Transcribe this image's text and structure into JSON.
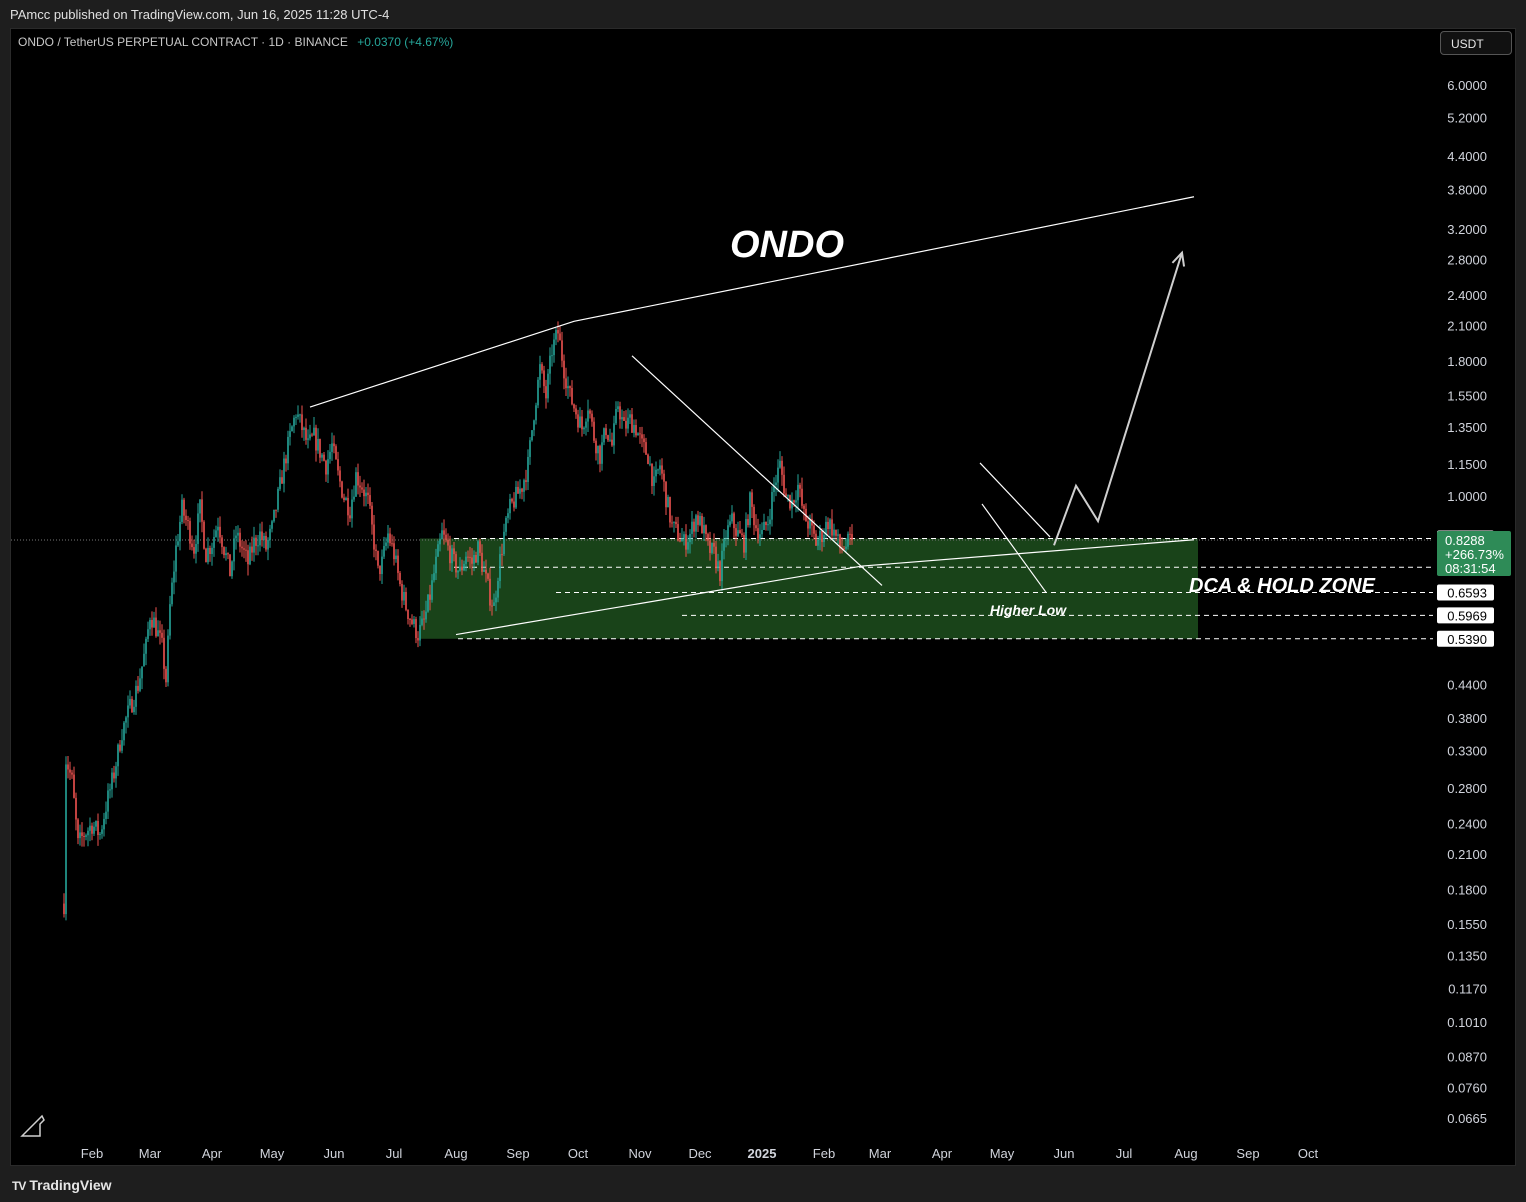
{
  "header": {
    "publish_info": "PAmcc published on TradingView.com, Jun 16, 2025 11:28 UTC-4"
  },
  "symbol": {
    "title": "ONDO / TetherUS PERPETUAL CONTRACT · 1D · BINANCE",
    "change": "+0.0370 (+4.67%)"
  },
  "currency_button": "USDT",
  "footer": {
    "brand": "TradingView",
    "brand_icon": "tradingview-logo-icon"
  },
  "colors": {
    "up": "#26a69a",
    "down": "#ef5350",
    "zone": "#1c4a1c",
    "price_label": "#2e8b57",
    "line": "#ffffff"
  },
  "chart_data": {
    "type": "candlestick",
    "title": "ONDO",
    "scale": "log",
    "ylim": [
      0.062,
      7.2
    ],
    "y_ticks": [
      6.0,
      5.2,
      4.4,
      3.8,
      3.2,
      2.8,
      2.4,
      2.1,
      1.8,
      1.55,
      1.35,
      1.15,
      1.0,
      0.44,
      0.38,
      0.33,
      0.28,
      0.24,
      0.21,
      0.18,
      0.155,
      0.135,
      0.117,
      0.101,
      0.087,
      0.076,
      0.0665
    ],
    "y_tick_labels": [
      "6.0000",
      "5.2000",
      "4.4000",
      "3.8000",
      "3.2000",
      "2.8000",
      "2.4000",
      "2.1000",
      "1.8000",
      "1.5500",
      "1.3500",
      "1.1500",
      "1.0000",
      "0.4400",
      "0.3800",
      "0.3300",
      "0.2800",
      "0.2400",
      "0.2100",
      "0.1800",
      "0.1550",
      "0.1350",
      "0.1170",
      "0.1010",
      "0.0870",
      "0.0760",
      "0.0665"
    ],
    "x_ticks": [
      {
        "label": "Feb",
        "day": 15
      },
      {
        "label": "Mar",
        "day": 44
      },
      {
        "label": "Apr",
        "day": 75
      },
      {
        "label": "May",
        "day": 105
      },
      {
        "label": "Jun",
        "day": 136
      },
      {
        "label": "Jul",
        "day": 166
      },
      {
        "label": "Aug",
        "day": 197
      },
      {
        "label": "Sep",
        "day": 228
      },
      {
        "label": "Oct",
        "day": 258
      },
      {
        "label": "Nov",
        "day": 289
      },
      {
        "label": "Dec",
        "day": 319
      },
      {
        "label": "2025",
        "day": 350
      },
      {
        "label": "Feb",
        "day": 381
      },
      {
        "label": "Mar",
        "day": 409
      },
      {
        "label": "Apr",
        "day": 440
      },
      {
        "label": "May",
        "day": 470
      },
      {
        "label": "Jun",
        "day": 501
      },
      {
        "label": "Jul",
        "day": 531
      },
      {
        "label": "Aug",
        "day": 562
      },
      {
        "label": "Sep",
        "day": 593
      },
      {
        "label": "Oct",
        "day": 623
      }
    ],
    "price_path": [
      [
        1,
        0.17
      ],
      [
        2,
        0.32
      ],
      [
        5,
        0.29
      ],
      [
        8,
        0.22
      ],
      [
        11,
        0.23
      ],
      [
        15,
        0.24
      ],
      [
        19,
        0.23
      ],
      [
        22,
        0.26
      ],
      [
        26,
        0.3
      ],
      [
        30,
        0.36
      ],
      [
        34,
        0.4
      ],
      [
        38,
        0.44
      ],
      [
        42,
        0.52
      ],
      [
        44,
        0.6
      ],
      [
        46,
        0.58
      ],
      [
        48,
        0.55
      ],
      [
        50,
        0.52
      ],
      [
        52,
        0.45
      ],
      [
        54,
        0.62
      ],
      [
        57,
        0.8
      ],
      [
        60,
        0.95
      ],
      [
        63,
        0.88
      ],
      [
        66,
        0.8
      ],
      [
        69,
        0.95
      ],
      [
        72,
        0.78
      ],
      [
        75,
        0.82
      ],
      [
        78,
        0.9
      ],
      [
        81,
        0.8
      ],
      [
        84,
        0.72
      ],
      [
        87,
        0.85
      ],
      [
        90,
        0.8
      ],
      [
        93,
        0.75
      ],
      [
        96,
        0.82
      ],
      [
        99,
        0.85
      ],
      [
        102,
        0.8
      ],
      [
        105,
        0.87
      ],
      [
        108,
        1.0
      ],
      [
        111,
        1.15
      ],
      [
        114,
        1.3
      ],
      [
        117,
        1.45
      ],
      [
        120,
        1.35
      ],
      [
        123,
        1.25
      ],
      [
        126,
        1.3
      ],
      [
        129,
        1.22
      ],
      [
        132,
        1.15
      ],
      [
        135,
        1.25
      ],
      [
        138,
        1.1
      ],
      [
        141,
        1.0
      ],
      [
        144,
        0.95
      ],
      [
        147,
        1.1
      ],
      [
        150,
        1.05
      ],
      [
        153,
        0.98
      ],
      [
        156,
        0.82
      ],
      [
        158,
        0.72
      ],
      [
        160,
        0.75
      ],
      [
        163,
        0.85
      ],
      [
        166,
        0.78
      ],
      [
        169,
        0.68
      ],
      [
        172,
        0.62
      ],
      [
        175,
        0.58
      ],
      [
        178,
        0.55
      ],
      [
        181,
        0.58
      ],
      [
        184,
        0.65
      ],
      [
        187,
        0.75
      ],
      [
        190,
        0.85
      ],
      [
        193,
        0.8
      ],
      [
        196,
        0.75
      ],
      [
        199,
        0.72
      ],
      [
        202,
        0.78
      ],
      [
        205,
        0.75
      ],
      [
        208,
        0.8
      ],
      [
        211,
        0.72
      ],
      [
        214,
        0.65
      ],
      [
        216,
        0.62
      ],
      [
        218,
        0.72
      ],
      [
        221,
        0.85
      ],
      [
        224,
        0.95
      ],
      [
        227,
        1.0
      ],
      [
        230,
        1.05
      ],
      [
        233,
        1.15
      ],
      [
        236,
        1.45
      ],
      [
        239,
        1.75
      ],
      [
        242,
        1.55
      ],
      [
        245,
        1.9
      ],
      [
        248,
        2.05
      ],
      [
        251,
        1.75
      ],
      [
        254,
        1.55
      ],
      [
        257,
        1.45
      ],
      [
        260,
        1.35
      ],
      [
        263,
        1.5
      ],
      [
        266,
        1.3
      ],
      [
        269,
        1.2
      ],
      [
        272,
        1.35
      ],
      [
        275,
        1.25
      ],
      [
        278,
        1.5
      ],
      [
        281,
        1.35
      ],
      [
        284,
        1.4
      ],
      [
        287,
        1.35
      ],
      [
        290,
        1.25
      ],
      [
        293,
        1.2
      ],
      [
        296,
        1.05
      ],
      [
        299,
        1.15
      ],
      [
        302,
        1.0
      ],
      [
        305,
        0.88
      ],
      [
        308,
        0.85
      ],
      [
        311,
        0.82
      ],
      [
        314,
        0.85
      ],
      [
        317,
        0.92
      ],
      [
        320,
        0.88
      ],
      [
        323,
        0.8
      ],
      [
        326,
        0.78
      ],
      [
        329,
        0.72
      ],
      [
        332,
        0.85
      ],
      [
        335,
        0.9
      ],
      [
        338,
        0.85
      ],
      [
        341,
        0.82
      ],
      [
        344,
        0.98
      ],
      [
        347,
        0.88
      ],
      [
        350,
        0.85
      ],
      [
        353,
        0.9
      ],
      [
        356,
        1.05
      ],
      [
        359,
        1.15
      ],
      [
        362,
        1.0
      ],
      [
        365,
        0.98
      ],
      [
        368,
        1.05
      ],
      [
        371,
        0.92
      ],
      [
        374,
        0.88
      ],
      [
        377,
        0.82
      ],
      [
        380,
        0.85
      ],
      [
        383,
        0.9
      ],
      [
        386,
        0.86
      ],
      [
        389,
        0.8
      ],
      [
        392,
        0.81
      ],
      [
        395,
        0.8288
      ]
    ],
    "candle_gap_day": 155,
    "candle_gap_days": 0,
    "zone": {
      "label": "DCA & HOLD ZONE",
      "from_day": 179,
      "to_day": 568,
      "top": 0.8345,
      "bottom": 0.539
    },
    "levels": [
      {
        "value": 0.8345,
        "label": "0.8345"
      },
      {
        "value": 0.7363,
        "label": "0.7363"
      },
      {
        "value": 0.6593,
        "label": "0.6593"
      },
      {
        "value": 0.5969,
        "label": "0.5969"
      },
      {
        "value": 0.539,
        "label": "0.5390"
      }
    ],
    "current_price": {
      "value": 0.8288,
      "label": "0.8288",
      "pct": "+266.73%",
      "timer": "08:31:54"
    },
    "annotations": [
      {
        "text": "ONDO",
        "role": "title"
      },
      {
        "text": "DCA & HOLD ZONE",
        "role": "zone-label"
      },
      {
        "text": "Higher Low",
        "role": "note"
      }
    ],
    "trendlines": [
      {
        "name": "upper-resistance",
        "points": [
          [
            124,
            1.48
          ],
          [
            256,
            2.15
          ],
          [
            566,
            3.7
          ]
        ]
      },
      {
        "name": "higher-low-support",
        "points": [
          [
            197,
            0.549
          ],
          [
            400,
            0.74
          ],
          [
            566,
            0.83
          ]
        ]
      },
      {
        "name": "downtrend-1",
        "points": [
          [
            285,
            1.85
          ],
          [
            410,
            0.68
          ]
        ]
      },
      {
        "name": "downtrend-2",
        "points": [
          [
            459,
            1.16
          ],
          [
            494,
            0.84
          ]
        ]
      },
      {
        "name": "channel-lower",
        "points": [
          [
            460,
            0.97
          ],
          [
            492,
            0.66
          ]
        ]
      },
      {
        "name": "arrow-projection",
        "points": [
          [
            496,
            0.81
          ],
          [
            507,
            1.05
          ],
          [
            518,
            0.9
          ],
          [
            560,
            2.9
          ]
        ]
      }
    ]
  }
}
